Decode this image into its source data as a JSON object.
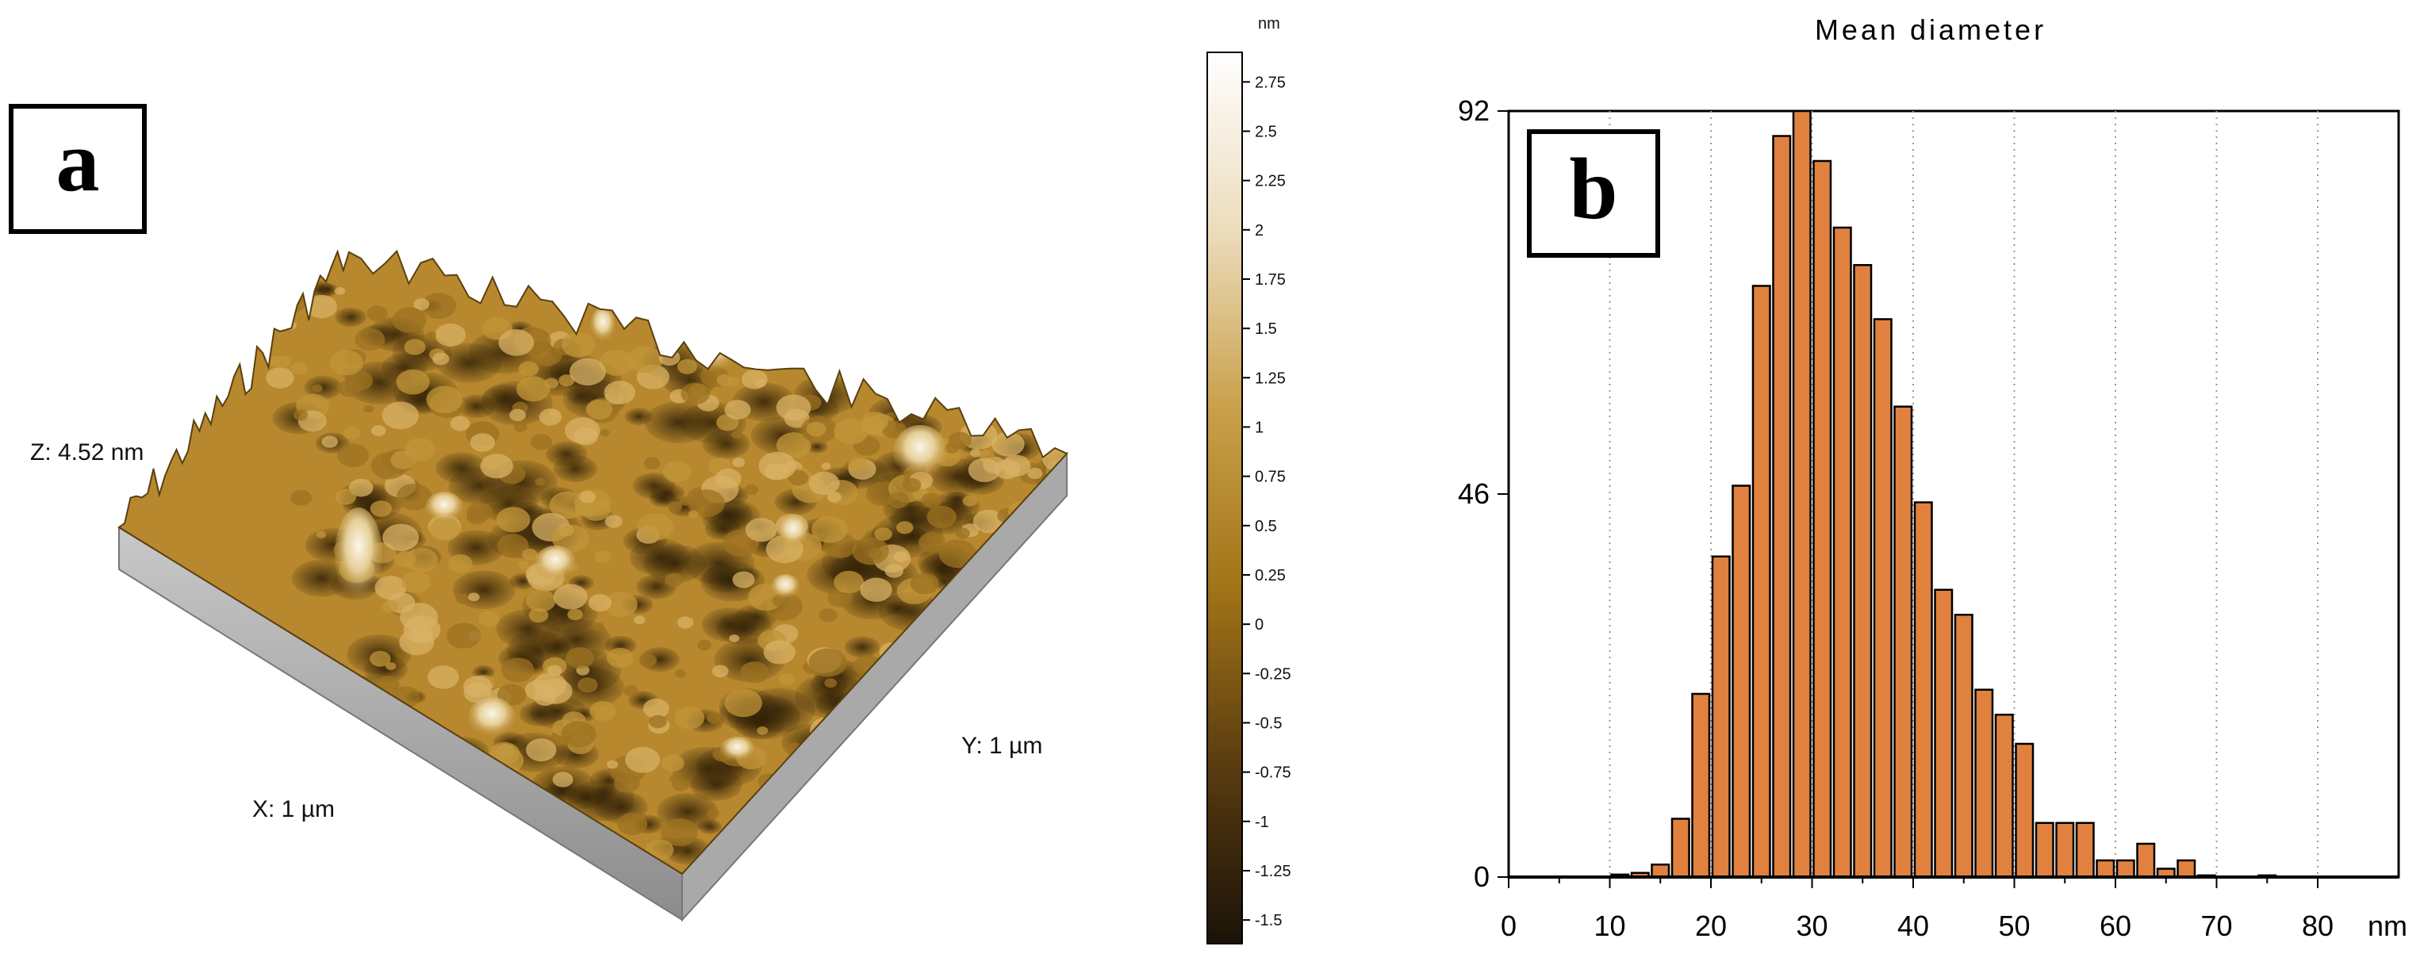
{
  "panel_a": {
    "label": "a",
    "z_label": "Z: 4.52 nm",
    "x_label": "X: 1 µm",
    "y_label": "Y: 1 µm",
    "colorbar": {
      "unit": "nm",
      "ticks": [
        "2.75",
        "2.5",
        "2.25",
        "2",
        "1.75",
        "1.5",
        "1.25",
        "1",
        "0.75",
        "0.5",
        "0.25",
        "0",
        "-0.25",
        "-0.5",
        "-0.75",
        "-1",
        "-1.25",
        "-1.5"
      ],
      "range": [
        -1.62,
        2.9
      ],
      "colors": [
        "#1a1208",
        "#5a3c10",
        "#a27418",
        "#c9a04a",
        "#ecdcbc",
        "#ffffff"
      ]
    },
    "surface_colors": {
      "base": "#b8882e",
      "dark": "#3a2808",
      "light": "#f6ecd6",
      "side": "#9a9a9a"
    }
  },
  "chart_data": {
    "type": "bar",
    "label": "b",
    "title": "Mean diameter",
    "xlabel": "",
    "x_unit": "nm",
    "ylabel": "",
    "xlim": [
      0,
      88
    ],
    "ylim": [
      0,
      92
    ],
    "x_ticks": [
      0,
      10,
      20,
      30,
      40,
      50,
      60,
      70,
      80
    ],
    "y_ticks": [
      0,
      46,
      92
    ],
    "bin_width": 2,
    "bins": [
      10,
      12,
      14,
      16,
      18,
      20,
      22,
      24,
      26,
      28,
      30,
      32,
      34,
      36,
      38,
      40,
      42,
      44,
      46,
      48,
      50,
      52,
      54,
      56,
      58,
      60,
      62,
      64,
      66,
      68,
      74
    ],
    "values": [
      0.3,
      0.5,
      1.5,
      7,
      22,
      38.5,
      47,
      71,
      89,
      92,
      86,
      78,
      73.5,
      67,
      56.5,
      45,
      34.5,
      31.5,
      22.5,
      19.5,
      16,
      6.5,
      6.5,
      6.5,
      2,
      2,
      4,
      1,
      2,
      0.2,
      0.2
    ],
    "bar_color": "#e0813f",
    "grid": "vertical-dotted"
  }
}
